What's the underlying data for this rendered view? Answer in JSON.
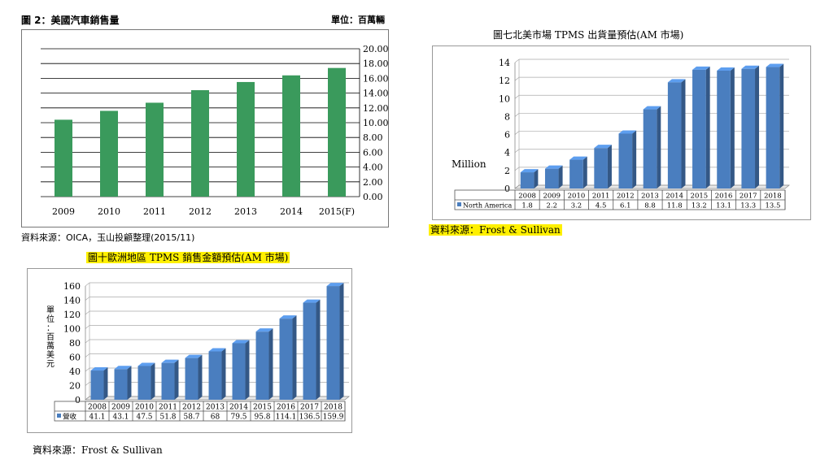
{
  "chart_data": [
    {
      "type": "bar",
      "title": "圖 2：美國汽車銷售量",
      "unit_label": "單位：百萬輛",
      "source": "資料來源：OICA，玉山投顧整理(2015/11)",
      "categories": [
        "2009",
        "2010",
        "2011",
        "2012",
        "2013",
        "2014",
        "2015(F)"
      ],
      "values": [
        10.4,
        11.6,
        12.7,
        14.4,
        15.5,
        16.4,
        17.4
      ],
      "ylim": [
        0,
        20
      ],
      "yticks": [
        "0.00",
        "2.00",
        "4.00",
        "6.00",
        "8.00",
        "10.00",
        "12.00",
        "14.00",
        "16.00",
        "18.00",
        "20.00"
      ],
      "grid": true,
      "color": "#3a9a5c"
    },
    {
      "type": "bar",
      "title": "圖七北美市場 TPMS 出貨量預估(AM 市場)",
      "ylabel": "Million",
      "source": "資料來源：Frost & Sullivan",
      "categories": [
        "2008",
        "2009",
        "2010",
        "2011",
        "2012",
        "2013",
        "2014",
        "2015",
        "2016",
        "2017",
        "2018"
      ],
      "series": [
        {
          "name": "North America",
          "values": [
            1.8,
            2.2,
            3.2,
            4.5,
            6.1,
            8.8,
            11.8,
            13.2,
            13.1,
            13.3,
            13.5
          ]
        }
      ],
      "value_labels": [
        "1.8",
        "2.2",
        "3.2",
        "4.5",
        "6.1",
        "8.8",
        "11.8",
        "13.2",
        "13.1",
        "13.3",
        "13.5"
      ],
      "ylim": [
        0,
        14
      ],
      "yticks": [
        "0",
        "2",
        "4",
        "6",
        "8",
        "10",
        "12",
        "14"
      ],
      "grid": true,
      "color": "#4a7ebf"
    },
    {
      "type": "bar",
      "title": "圖十歐洲地區 TPMS 銷售金額預估(AM 市場)",
      "ylabel": "單位：百萬美元",
      "source": "資料來源：Frost & Sullivan",
      "categories": [
        "2008",
        "2009",
        "2010",
        "2011",
        "2012",
        "2013",
        "2014",
        "2015",
        "2016",
        "2017",
        "2018"
      ],
      "series": [
        {
          "name": "營收",
          "values": [
            41.1,
            43.1,
            47.5,
            51.8,
            58.7,
            68,
            79.5,
            95.8,
            114.1,
            136.5,
            159.9
          ]
        }
      ],
      "value_labels": [
        "41.1",
        "43.1",
        "47.5",
        "51.8",
        "58.7",
        "68",
        "79.5",
        "95.8",
        "114.1",
        "136.5",
        "159.9"
      ],
      "ylim": [
        0,
        160
      ],
      "yticks": [
        "0",
        "20",
        "40",
        "60",
        "80",
        "100",
        "120",
        "140",
        "160"
      ],
      "grid": true,
      "color": "#4a7ebf"
    }
  ]
}
